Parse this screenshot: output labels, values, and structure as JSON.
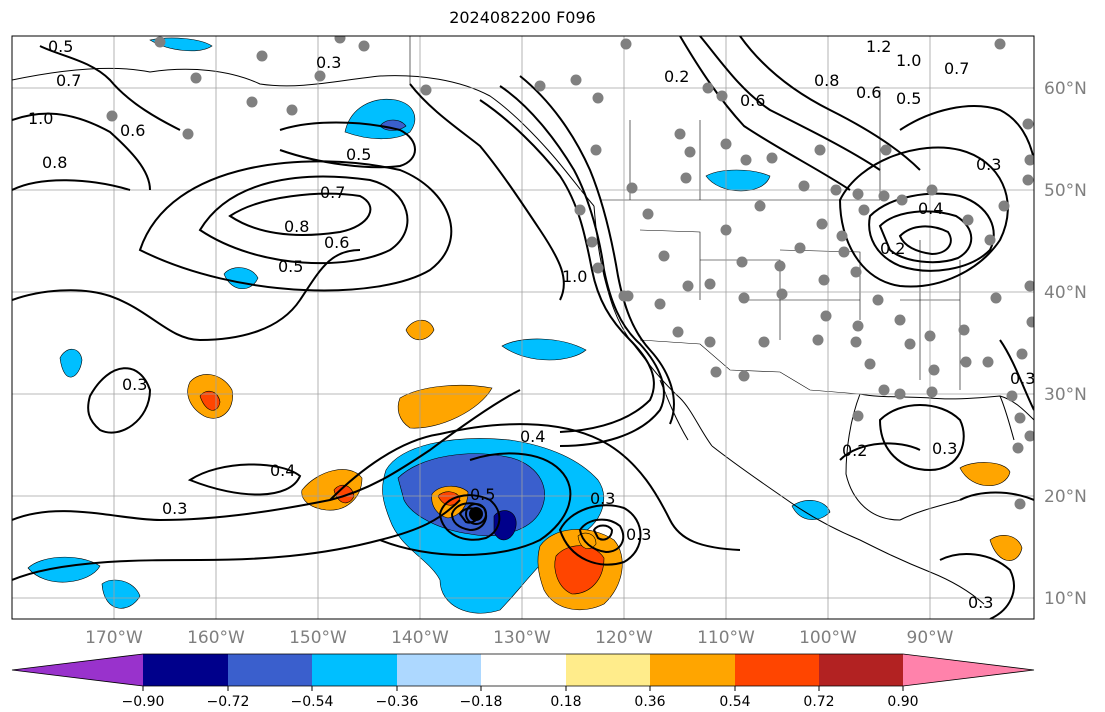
{
  "title": "2024082200 F096",
  "map": {
    "projection": "plate-carree",
    "lon_range": [
      -180,
      -80
    ],
    "lat_range": [
      8,
      65
    ],
    "grid_spacing_deg": 10,
    "gridlines": true
  },
  "lon_ticks": [
    "170°W",
    "160°W",
    "150°W",
    "140°W",
    "130°W",
    "120°W",
    "110°W",
    "100°W",
    "90°W"
  ],
  "lat_ticks": [
    "10°N",
    "20°N",
    "30°N",
    "40°N",
    "50°N",
    "60°N"
  ],
  "colorbar": {
    "ticks": [
      "−0.90",
      "−0.72",
      "−0.54",
      "−0.36",
      "−0.18",
      "0.18",
      "0.36",
      "0.54",
      "0.72",
      "0.90"
    ],
    "colors": [
      "#9932cc",
      "#00008b",
      "#3a5fcd",
      "#00bfff",
      "#add8ff",
      "#ffffff",
      "#ffec8b",
      "#ffa500",
      "#ff4500",
      "#b22222",
      "#ff82ab"
    ],
    "extend": "both"
  },
  "contour_labels": [
    "0.5",
    "0.3",
    "0.7",
    "1.0",
    "0.8",
    "0.6",
    "0.5",
    "0.7",
    "0.8",
    "0.6",
    "0.5",
    "1.0",
    "0.3",
    "0.4",
    "0.5",
    "0.3",
    "0.4",
    "0.3",
    "0.3",
    "0.2",
    "0.6",
    "0.8",
    "1.2",
    "1.0",
    "0.7",
    "0.6",
    "0.5",
    "0.3",
    "0.4",
    "0.2",
    "0.3",
    "0.3",
    "0.2",
    "0.3"
  ],
  "station_marker_color": "#808080",
  "storm_marker_color": "#000000"
}
